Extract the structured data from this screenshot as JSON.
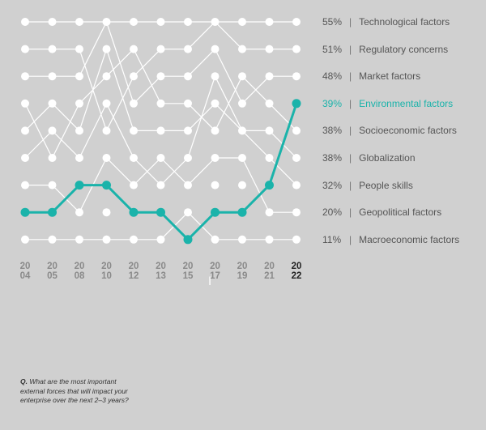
{
  "chart_data": {
    "type": "bump",
    "years": [
      {
        "top": "20",
        "bottom": "04"
      },
      {
        "top": "20",
        "bottom": "05"
      },
      {
        "top": "20",
        "bottom": "08"
      },
      {
        "top": "20",
        "bottom": "10"
      },
      {
        "top": "20",
        "bottom": "12"
      },
      {
        "top": "20",
        "bottom": "13"
      },
      {
        "top": "20",
        "bottom": "15"
      },
      {
        "top": "20",
        "bottom": "17"
      },
      {
        "top": "20",
        "bottom": "19"
      },
      {
        "top": "20",
        "bottom": "21"
      },
      {
        "top": "20",
        "bottom": "22"
      }
    ],
    "rank_count": 9,
    "highlight": {
      "name": "Environmental factors",
      "ranks": [
        8,
        8,
        7,
        7,
        8,
        8,
        9,
        8,
        8,
        7,
        4
      ],
      "color": "#1ab3aa"
    },
    "series": [
      {
        "name": "Technological factors",
        "ranks": [
          1,
          1,
          1,
          1,
          1,
          1,
          1,
          1,
          1,
          1,
          1
        ]
      },
      {
        "name": "Regulatory concerns",
        "ranks": [
          2,
          2,
          2,
          5,
          3,
          2,
          2,
          1,
          2,
          2,
          2
        ]
      },
      {
        "name": "Market factors",
        "ranks": [
          3,
          3,
          3,
          1,
          4,
          3,
          3,
          2,
          4,
          3,
          3
        ]
      },
      {
        "name": "Socioeconomic factors",
        "ranks": [
          4,
          6,
          4,
          3,
          2,
          4,
          4,
          5,
          3,
          4,
          5
        ]
      },
      {
        "name": "Globalization",
        "ranks": [
          5,
          4,
          5,
          2,
          5,
          5,
          5,
          4,
          5,
          5,
          6
        ]
      },
      {
        "name": "People skills",
        "ranks": [
          6,
          5,
          6,
          4,
          6,
          7,
          6,
          3,
          5,
          6,
          7
        ]
      },
      {
        "name": "Geopolitical factors",
        "ranks": [
          7,
          7,
          8,
          6,
          7,
          6,
          7,
          6,
          6,
          8,
          8
        ]
      },
      {
        "name": "Macroeconomic factors",
        "ranks": [
          9,
          9,
          9,
          9,
          9,
          9,
          8,
          9,
          9,
          9,
          9
        ]
      }
    ],
    "labels": [
      {
        "pct": "55%",
        "name": "Technological factors"
      },
      {
        "pct": "51%",
        "name": "Regulatory concerns"
      },
      {
        "pct": "48%",
        "name": "Market factors"
      },
      {
        "pct": "39%",
        "name": "Environmental factors"
      },
      {
        "pct": "38%",
        "name": "Socioeconomic factors"
      },
      {
        "pct": "38%",
        "name": "Globalization"
      },
      {
        "pct": "32%",
        "name": "People skills"
      },
      {
        "pct": "20%",
        "name": "Geopolitical factors"
      },
      {
        "pct": "11%",
        "name": "Macroeconomic factors"
      }
    ],
    "separator": "|",
    "highlight_label_index": 3,
    "line_color": "#ffffff"
  },
  "footnote": {
    "q": "Q.",
    "text": " What are the most important external forces that will impact your enterprise over the next 2–3 years?"
  },
  "cursor_glyph": "I"
}
